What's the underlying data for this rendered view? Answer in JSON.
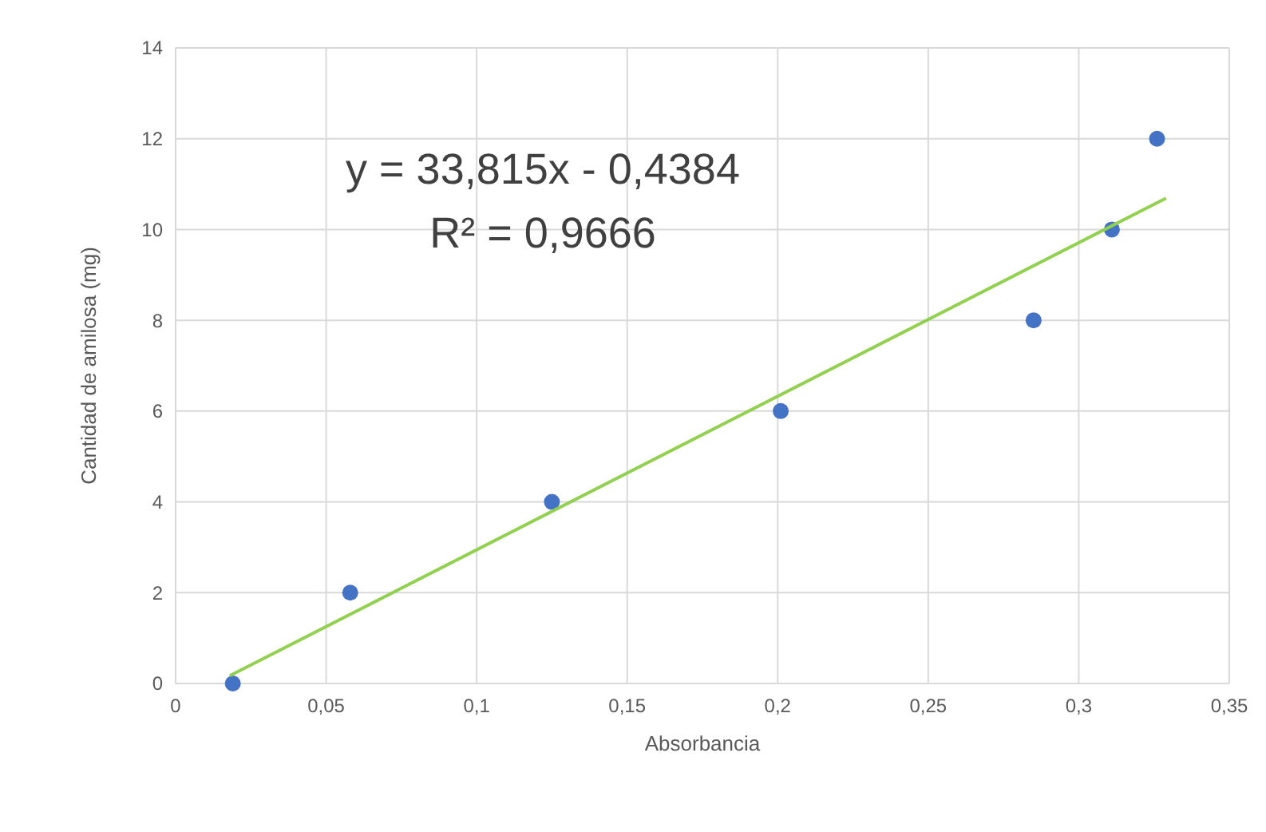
{
  "chart_data": {
    "type": "scatter",
    "xlabel": "Absorbancia",
    "ylabel": "Cantidad de amilosa (mg)",
    "annotations": [
      "y = 33,815x - 0,4384",
      "R² = 0,9666"
    ],
    "series": [
      {
        "color": "#4472c4",
        "marker": "circle",
        "x": [
          0.019,
          0.058,
          0.125,
          0.201,
          0.285,
          0.311,
          0.326
        ],
        "values": [
          0,
          2,
          4,
          6,
          8,
          10,
          12
        ]
      },
      {
        "type": "line",
        "color": "#92d050",
        "x": [
          0.018,
          0.329
        ],
        "values": [
          0.17,
          10.69
        ]
      }
    ],
    "xlim": [
      0,
      0.35
    ],
    "xticks": [
      0,
      {
        "value": 0.05,
        "label": "0,05"
      },
      {
        "value": 0.1,
        "label": "0,1"
      },
      {
        "value": 0.15,
        "label": "0,15"
      },
      {
        "value": 0.2,
        "label": "0,2"
      },
      {
        "value": 0.25,
        "label": "0,25"
      },
      {
        "value": 0.3,
        "label": "0,3"
      },
      {
        "value": 0.35,
        "label": "0,35"
      }
    ],
    "ylim": [
      0,
      14
    ],
    "yticks": [
      0,
      2,
      4,
      6,
      8,
      10,
      12,
      14
    ],
    "grid": true
  }
}
